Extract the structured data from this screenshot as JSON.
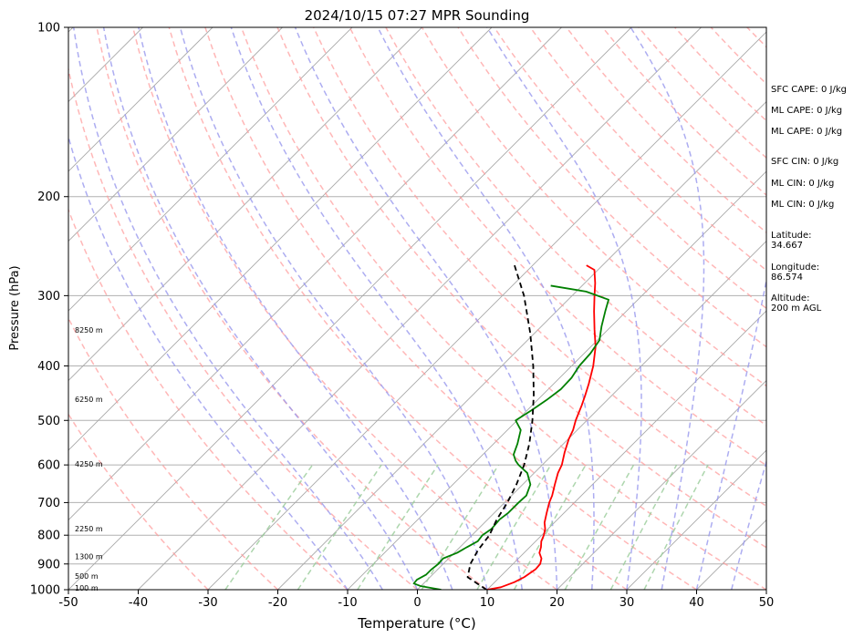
{
  "chart_data": {
    "type": "line",
    "title": "2024/10/15 07:27 MPR Sounding",
    "xlabel": "Temperature (°C)",
    "ylabel": "Pressure (hPa)",
    "xlim": [
      -50,
      50
    ],
    "ylim": [
      1000,
      100
    ],
    "y_scale": "log",
    "grid": true,
    "x_ticks": [
      "-50",
      "-40",
      "-30",
      "-20",
      "-10",
      "0",
      "10",
      "20",
      "30",
      "40",
      "50"
    ],
    "y_ticks": [
      {
        "p": 100,
        "label": "100"
      },
      {
        "p": 200,
        "label": "200"
      },
      {
        "p": 300,
        "label": "300"
      },
      {
        "p": 400,
        "label": "400"
      },
      {
        "p": 500,
        "label": "500"
      },
      {
        "p": 600,
        "label": "600"
      },
      {
        "p": 700,
        "label": "700"
      },
      {
        "p": 800,
        "label": "800"
      },
      {
        "p": 900,
        "label": "900"
      },
      {
        "p": 1000,
        "label": "1000"
      }
    ],
    "skew": 1.0,
    "height_labels": [
      {
        "p": 345,
        "label": "8250 m"
      },
      {
        "p": 458,
        "label": "6250 m"
      },
      {
        "p": 598,
        "label": "4250 m"
      },
      {
        "p": 779,
        "label": "2250 m"
      },
      {
        "p": 873,
        "label": "1300 m"
      },
      {
        "p": 946,
        "label": "500 m"
      },
      {
        "p": 992,
        "label": "100 m"
      }
    ],
    "series": [
      {
        "color": "#ff0000",
        "points": [
          [
            1000,
            10.0
          ],
          [
            990,
            11.6
          ],
          [
            970,
            12.8
          ],
          [
            950,
            13.5
          ],
          [
            920,
            14.0
          ],
          [
            900,
            13.9
          ],
          [
            880,
            13.3
          ],
          [
            860,
            12.2
          ],
          [
            840,
            11.6
          ],
          [
            820,
            10.8
          ],
          [
            800,
            10.3
          ],
          [
            780,
            9.6
          ],
          [
            760,
            8.6
          ],
          [
            730,
            7.5
          ],
          [
            700,
            6.4
          ],
          [
            680,
            5.8
          ],
          [
            650,
            4.6
          ],
          [
            620,
            3.4
          ],
          [
            600,
            2.8
          ],
          [
            570,
            1.4
          ],
          [
            540,
            0.1
          ],
          [
            520,
            -0.6
          ],
          [
            500,
            -1.6
          ],
          [
            470,
            -2.9
          ],
          [
            450,
            -3.9
          ],
          [
            430,
            -5.0
          ],
          [
            400,
            -6.9
          ],
          [
            370,
            -9.3
          ],
          [
            345,
            -11.9
          ],
          [
            320,
            -14.6
          ],
          [
            300,
            -16.8
          ],
          [
            285,
            -18.5
          ],
          [
            270,
            -20.5
          ],
          [
            265,
            -22.3
          ]
        ]
      },
      {
        "color": "#008000",
        "points": [
          [
            1000,
            3.4
          ],
          [
            985,
            -0.1
          ],
          [
            975,
            -1.4
          ],
          [
            960,
            -1.5
          ],
          [
            940,
            -0.9
          ],
          [
            920,
            -0.9
          ],
          [
            900,
            -0.7
          ],
          [
            880,
            -0.8
          ],
          [
            860,
            0.4
          ],
          [
            840,
            1.0
          ],
          [
            820,
            1.7
          ],
          [
            800,
            1.5
          ],
          [
            780,
            1.9
          ],
          [
            750,
            1.7
          ],
          [
            730,
            2.0
          ],
          [
            700,
            2.0
          ],
          [
            680,
            2.1
          ],
          [
            650,
            1.1
          ],
          [
            620,
            -1.0
          ],
          [
            600,
            -3.4
          ],
          [
            590,
            -4.4
          ],
          [
            575,
            -5.6
          ],
          [
            550,
            -6.6
          ],
          [
            520,
            -8.1
          ],
          [
            500,
            -10.2
          ],
          [
            480,
            -9.4
          ],
          [
            460,
            -8.7
          ],
          [
            440,
            -8.2
          ],
          [
            420,
            -8.3
          ],
          [
            400,
            -8.9
          ],
          [
            380,
            -9.1
          ],
          [
            360,
            -9.7
          ],
          [
            340,
            -11.4
          ],
          [
            320,
            -13.0
          ],
          [
            305,
            -14.2
          ],
          [
            295,
            -18.6
          ],
          [
            288,
            -24.5
          ]
        ]
      },
      {
        "color": "#000000",
        "dashed": true,
        "points": [
          [
            1000,
            9.9
          ],
          [
            950,
            5.4
          ],
          [
            900,
            3.9
          ],
          [
            850,
            3.0
          ],
          [
            800,
            2.5
          ],
          [
            750,
            1.3
          ],
          [
            700,
            0.4
          ],
          [
            650,
            -0.9
          ],
          [
            600,
            -2.6
          ],
          [
            550,
            -4.9
          ],
          [
            500,
            -7.8
          ],
          [
            450,
            -11.3
          ],
          [
            400,
            -15.5
          ],
          [
            350,
            -20.6
          ],
          [
            300,
            -26.9
          ],
          [
            265,
            -32.6
          ]
        ]
      }
    ],
    "info_labels": [
      {
        "key": "sfc_cape",
        "text": "SFC CAPE: 0 J/kg"
      },
      {
        "key": "ml_cape_1",
        "text": "ML CAPE: 0 J/kg"
      },
      {
        "key": "ml_cape_2",
        "text": "ML CAPE: 0 J/kg"
      },
      {
        "key": "sfc_cin",
        "text": "SFC CIN: 0 J/kg"
      },
      {
        "key": "ml_cin_1",
        "text": "ML CIN: 0 J/kg"
      },
      {
        "key": "ml_cin_2",
        "text": "ML CIN: 0 J/kg"
      },
      {
        "key": "latitude",
        "text": "Latitude:\n34.667"
      },
      {
        "key": "longitude",
        "text": "Longitude:\n86.574"
      },
      {
        "key": "altitude",
        "text": "Altitude:\n200 m AGL"
      }
    ],
    "colors": {
      "temperature": "#ff0000",
      "dewpoint": "#008000",
      "parcel": "#000000",
      "dry_adiabat": "#ff9999",
      "moist_adiabat": "#9999ee",
      "mixing_ratio": "#99cc99",
      "isotherm": "#999999"
    }
  }
}
